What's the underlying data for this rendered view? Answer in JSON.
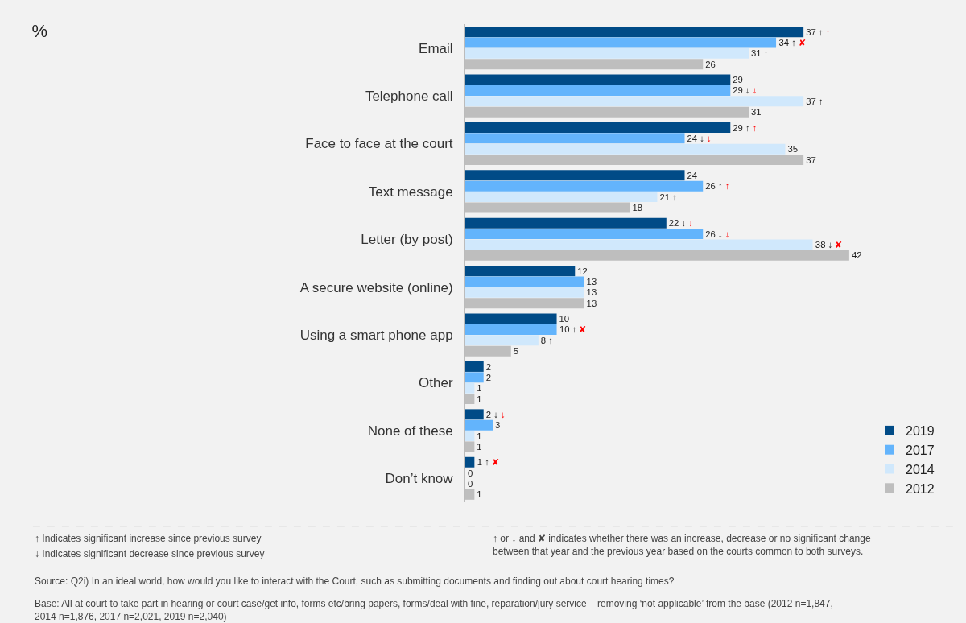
{
  "chart_data": {
    "type": "bar",
    "orientation": "horizontal",
    "title": "%",
    "categories": [
      "Email",
      "Telephone call",
      "Face to face at the court",
      "Text message",
      "Letter (by post)",
      "A secure website (online)",
      "Using a smart phone app",
      "Other",
      "None of these",
      "Don’t know"
    ],
    "series": [
      {
        "name": "2019",
        "color": "#004b87",
        "values": [
          37,
          29,
          29,
          24,
          22,
          12,
          10,
          2,
          2,
          1
        ],
        "value_labels": [
          "37 ↑ ↑",
          "29",
          "29 ↑ ↑",
          "24",
          "22 ↓ ↓",
          "12",
          "10",
          "2",
          "2 ↓ ↓",
          "1 ↑ ✘"
        ]
      },
      {
        "name": "2017",
        "color": "#63b4fc",
        "values": [
          34,
          29,
          24,
          26,
          26,
          13,
          10,
          2,
          3,
          0
        ],
        "value_labels": [
          "34 ↑ ✘",
          "29 ↓ ↓",
          "24 ↓ ↓",
          "26 ↑ ↑",
          "26 ↓ ↓",
          "13",
          "10 ↑ ✘",
          "2",
          "3",
          "0"
        ]
      },
      {
        "name": "2014",
        "color": "#d0e8fc",
        "values": [
          31,
          37,
          35,
          21,
          38,
          13,
          8,
          1,
          1,
          0
        ],
        "value_labels": [
          "31 ↑",
          "37 ↑",
          "35",
          "21 ↑",
          "38 ↓ ✘",
          "13",
          "8 ↑",
          "1",
          "1",
          "0"
        ]
      },
      {
        "name": "2012",
        "color": "#bebebe",
        "values": [
          26,
          31,
          37,
          18,
          42,
          13,
          5,
          1,
          1,
          1
        ],
        "value_labels": [
          "26",
          "31",
          "37",
          "18",
          "42",
          "13",
          "5",
          "1",
          "1",
          "1"
        ]
      }
    ],
    "legend": "bottom right",
    "grid": false,
    "annotations": [
      "↑ Indicates significant increase since previous survey",
      "↓ Indicates significant decrease since previous survey",
      "↑ or ↓ and ✘ indicates whether there was an increase, decrease or no significant change\nbetween that year and the previous year based on the courts common to both surveys.",
      "Source: Q2i) In an ideal world, how would you like to interact with the Court, such as submitting documents and finding out about court hearing times?",
      "Base: All at court to take part in hearing or court case/get info, forms etc/bring papers, forms/deal with fine, reparation/jury service – removing ‘not applicable’ from the base (2012 n=1,847,\n2014 n=1,876, 2017 n=2,021, 2019 n=2,040)"
    ]
  }
}
